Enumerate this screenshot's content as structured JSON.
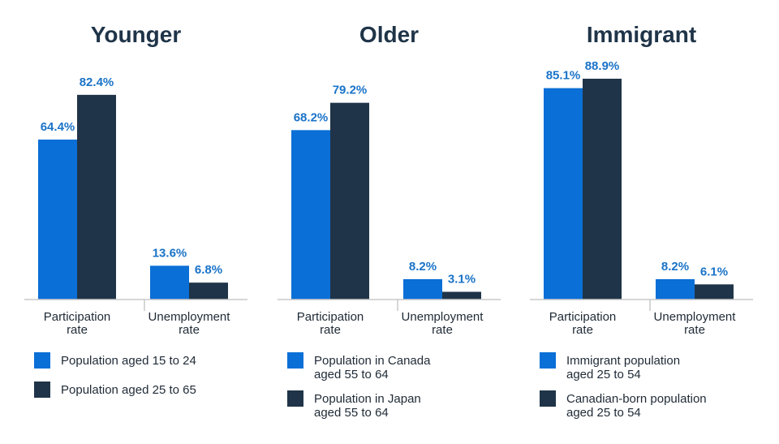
{
  "colors": {
    "series_a": "#0a6fd6",
    "series_b": "#1f3448",
    "axis": "#c8c8c8",
    "value_label": "#1a73c8",
    "title": "#1f3448"
  },
  "chart_data": [
    {
      "type": "bar",
      "title": "Younger",
      "categories": [
        [
          "Participation",
          "rate"
        ],
        [
          "Unemployment",
          "rate"
        ]
      ],
      "series": [
        {
          "name": [
            "Population aged 15 to 24"
          ],
          "values": [
            64.4,
            13.6
          ],
          "labels": [
            "64.4%",
            "13.6%"
          ]
        },
        {
          "name": [
            "Population aged 25 to 65"
          ],
          "values": [
            82.4,
            6.8
          ],
          "labels": [
            "82.4%",
            "6.8%"
          ]
        }
      ],
      "ylim": [
        0,
        100
      ]
    },
    {
      "type": "bar",
      "title": "Older",
      "categories": [
        [
          "Participation",
          "rate"
        ],
        [
          "Unemployment",
          "rate"
        ]
      ],
      "series": [
        {
          "name": [
            "Population in Canada",
            "aged 55 to 64"
          ],
          "values": [
            68.2,
            8.2
          ],
          "labels": [
            "68.2%",
            "8.2%"
          ]
        },
        {
          "name": [
            "Population in Japan",
            "aged 55 to 64"
          ],
          "values": [
            79.2,
            3.1
          ],
          "labels": [
            "79.2%",
            "3.1%"
          ]
        }
      ],
      "ylim": [
        0,
        100
      ]
    },
    {
      "type": "bar",
      "title": "Immigrant",
      "categories": [
        [
          "Participation",
          "rate"
        ],
        [
          "Unemployment",
          "rate"
        ]
      ],
      "series": [
        {
          "name": [
            "Immigrant population",
            "aged 25 to 54"
          ],
          "values": [
            85.1,
            8.2
          ],
          "labels": [
            "85.1%",
            "8.2%"
          ]
        },
        {
          "name": [
            "Canadian-born population",
            "aged 25 to 54"
          ],
          "values": [
            88.9,
            6.1
          ],
          "labels": [
            "88.9%",
            "6.1%"
          ]
        }
      ],
      "ylim": [
        0,
        100
      ]
    }
  ]
}
